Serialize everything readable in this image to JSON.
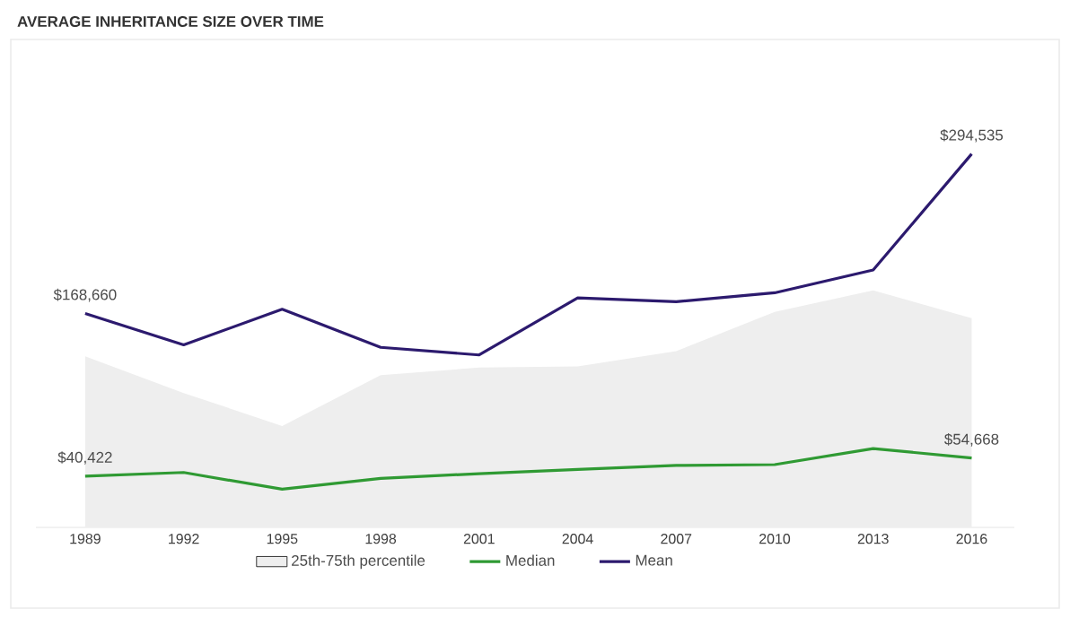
{
  "chart_data": {
    "type": "line",
    "title": "AVERAGE INHERITANCE SIZE OVER TIME",
    "x": [
      1989,
      1992,
      1995,
      1998,
      2001,
      2004,
      2007,
      2010,
      2013,
      2016
    ],
    "xlim": [
      1987.5,
      2017.3
    ],
    "xticks": [
      1989,
      1992,
      1995,
      1998,
      2001,
      2004,
      2007,
      2010,
      2013,
      2016
    ],
    "tick_labels": "x",
    "legend": "bottom",
    "series": [
      {
        "name": "25th-75th percentile",
        "type": "area",
        "color": "#eeeeee",
        "values": [
          135000,
          106000,
          80000,
          120000,
          126000,
          127000,
          139000,
          170000,
          187000,
          165000
        ]
      },
      {
        "name": "Median",
        "color": "#2f9a33",
        "values": [
          40422,
          43300,
          30100,
          38600,
          42400,
          45700,
          48900,
          49500,
          62200,
          54668
        ],
        "value_labels": [
          "$40,422",
          null,
          null,
          null,
          null,
          null,
          null,
          null,
          null,
          "$54,668"
        ]
      },
      {
        "name": "Mean",
        "color": "#2c1a6e",
        "values": [
          168660,
          144000,
          172000,
          142000,
          136000,
          181000,
          178000,
          185000,
          203000,
          294535
        ],
        "value_labels": [
          "$168,660",
          null,
          null,
          null,
          null,
          null,
          null,
          null,
          null,
          "$294,535"
        ]
      }
    ]
  }
}
